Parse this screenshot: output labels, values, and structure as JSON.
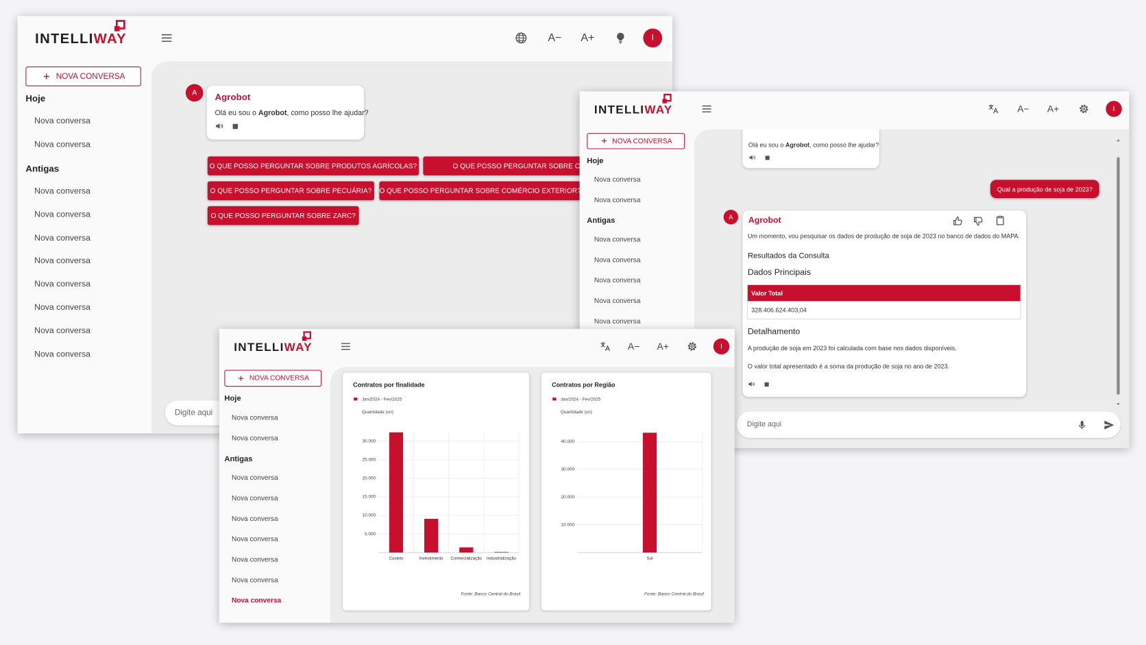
{
  "windows": [
    {
      "brand": [
        "INTELLI",
        "WAY"
      ],
      "font_smaller": "A−",
      "font_larger": "A+",
      "avatar": "I",
      "new_chat": "NOVA CONVERSA",
      "sidebar": [
        {
          "heading": "Hoje",
          "items": [
            "Nova conversa",
            "Nova conversa"
          ]
        },
        {
          "heading": "Antigas",
          "items": [
            "Nova conversa",
            "Nova conversa",
            "Nova conversa",
            "Nova conversa",
            "Nova conversa",
            "Nova conversa",
            "Nova conversa",
            "Nova conversa"
          ]
        }
      ],
      "chat": {
        "bot_avatar": "A",
        "bot_name": "Agrobot",
        "greeting": [
          "Olá eu sou o ",
          "Agrobot",
          ", como posso lhe ajudar?"
        ],
        "suggestions": [
          "O QUE POSSO PERGUNTAR SOBRE PRODUTOS AGRÍCOLAS?",
          "O QUE POSSO PERGUNTAR SOBRE CRÉDITO R",
          "O QUE POSSO PERGUNTAR SOBRE PECUÁRIA?",
          "O QUE POSSO PERGUNTAR SOBRE COMÉRCIO EXTERIOR?",
          "O QUE POSSO PERGUNTAR SOBRE ZARC?"
        ]
      },
      "input_placeholder": "Digite aqui"
    },
    {
      "brand": [
        "INTELLI",
        "WAY"
      ],
      "font_smaller": "A−",
      "font_larger": "A+",
      "avatar": "I",
      "new_chat": "NOVA CONVERSA",
      "sidebar": [
        {
          "heading": "Hoje",
          "items": [
            "Nova conversa",
            "Nova conversa"
          ]
        },
        {
          "heading": "Antigas",
          "items": [
            "Nova conversa",
            "Nova conversa",
            "Nova conversa",
            "Nova conversa",
            "Nova conversa"
          ]
        }
      ],
      "chat": {
        "greeting": [
          "Olá eu sou o ",
          "Agrobot",
          ", como posso lhe ajudar?"
        ],
        "user_message": "Qual a produção de soja de 2023?",
        "bot_avatar": "A",
        "bot_name": "Agrobot",
        "intro": "Um momento, vou pesquisar os dados de produção de soja de 2023 no banco de dados do MAPA.",
        "results_heading": "Resultados da Consulta",
        "main_heading": "Dados Principais",
        "table": {
          "header": "Valor Total",
          "value": "328.406.624.403,04"
        },
        "detail_heading": "Detalhamento",
        "details": [
          "A produção de soja em 2023 foi calculada com base nos dados disponíveis.",
          "O valor total apresentado é a soma da produção de soja no ano de 2023."
        ]
      },
      "input_placeholder": "Digite aqui"
    },
    {
      "brand": [
        "INTELLI",
        "WAY"
      ],
      "font_smaller": "A−",
      "font_larger": "A+",
      "avatar": "I",
      "new_chat": "NOVA CONVERSA",
      "sidebar": [
        {
          "heading": "Hoje",
          "items": [
            "Nova conversa",
            "Nova conversa"
          ]
        },
        {
          "heading": "Antigas",
          "items": [
            "Nova conversa",
            "Nova conversa",
            "Nova conversa",
            "Nova conversa",
            "Nova conversa",
            "Nova conversa",
            "Nova conversa"
          ]
        }
      ]
    }
  ],
  "chart_data": [
    {
      "type": "bar",
      "title": "Contratos por finalidade",
      "y_label": "Quantidade (un)",
      "categories": [
        "Custeio",
        "Investimento",
        "Comercialização",
        "Industrialização"
      ],
      "series": [
        {
          "name": "Jan/2024 - Fev/2025",
          "color": "#c8102e",
          "values": [
            32400,
            9100,
            1400,
            150
          ]
        }
      ],
      "ylim": [
        0,
        32500
      ],
      "yticks": [
        {
          "value": 5000,
          "label": "5.000"
        },
        {
          "value": 10000,
          "label": "10.000"
        },
        {
          "value": 15000,
          "label": "15.000"
        },
        {
          "value": 20000,
          "label": "20.000"
        },
        {
          "value": 25000,
          "label": "25.000"
        },
        {
          "value": 30000,
          "label": "30.000"
        }
      ],
      "grid": true,
      "source": "Fonte: Banco Central do Brasil"
    },
    {
      "type": "bar",
      "title": "Contratos por Região",
      "y_label": "Quantidade (un)",
      "categories": [
        "Sul"
      ],
      "series": [
        {
          "name": "Jan/2024 - Fev/2025",
          "color": "#c8102e",
          "values": [
            43200
          ]
        }
      ],
      "ylim": [
        0,
        44000
      ],
      "yticks": [
        {
          "value": 10000,
          "label": "10.000"
        },
        {
          "value": 20000,
          "label": "20.000"
        },
        {
          "value": 30000,
          "label": "30.000"
        },
        {
          "value": 40000,
          "label": "40.000"
        }
      ],
      "grid": true,
      "source": "Fonte: Banco Central do Brasil"
    }
  ]
}
